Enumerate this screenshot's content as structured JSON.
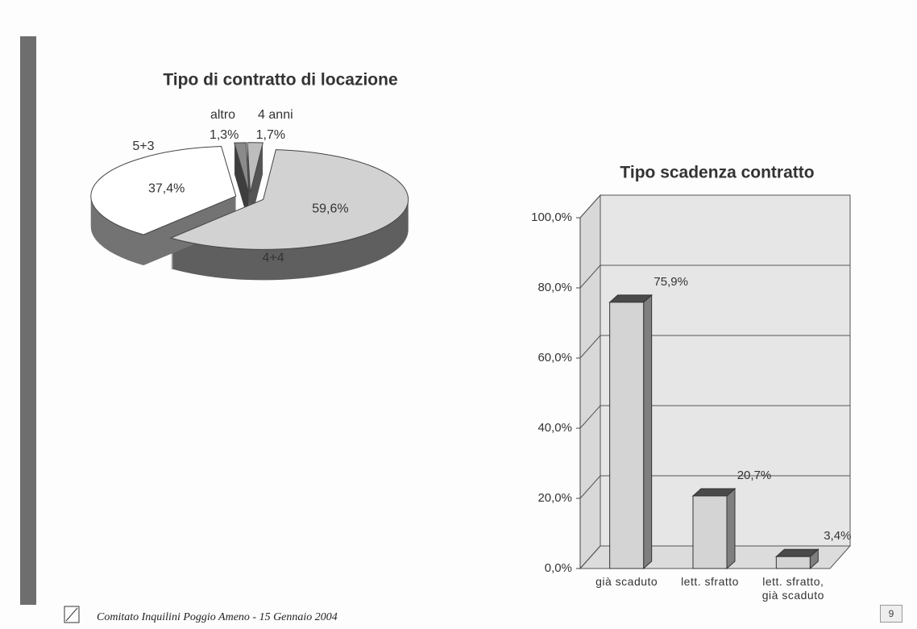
{
  "chart_data": [
    {
      "type": "pie",
      "title": "Tipo di contratto di locazione",
      "categories": [
        "4+4",
        "5+3",
        "altro",
        "4 anni"
      ],
      "values": [
        59.6,
        37.4,
        1.3,
        1.7
      ],
      "value_labels": [
        "59,6%",
        "37,4%",
        "1,3%",
        "1,7%"
      ],
      "colors": [
        "#d2d2d2",
        "#ffffff",
        "#8a8a8a",
        "#bdbdbd"
      ]
    },
    {
      "type": "bar",
      "title": "Tipo scadenza contratto",
      "categories": [
        "già scaduto",
        "lett. sfratto",
        "lett. sfratto, già scaduto"
      ],
      "values": [
        75.9,
        20.7,
        3.4
      ],
      "value_labels": [
        "75,9%",
        "20,7%",
        "3,4%"
      ],
      "color": "#d4d4d4",
      "ylim": [
        0,
        100
      ],
      "yticks": [
        {
          "value": 0,
          "label": "0,0%"
        },
        {
          "value": 20,
          "label": "20,0%"
        },
        {
          "value": 40,
          "label": "40,0%"
        },
        {
          "value": 60,
          "label": "60,0%"
        },
        {
          "value": 80,
          "label": "80,0%"
        },
        {
          "value": 100,
          "label": "100,0%"
        }
      ],
      "grid": true
    }
  ],
  "footer": "Comitato Inquilini Poggio Ameno - 15 Gennaio 2004",
  "page_number": "9"
}
